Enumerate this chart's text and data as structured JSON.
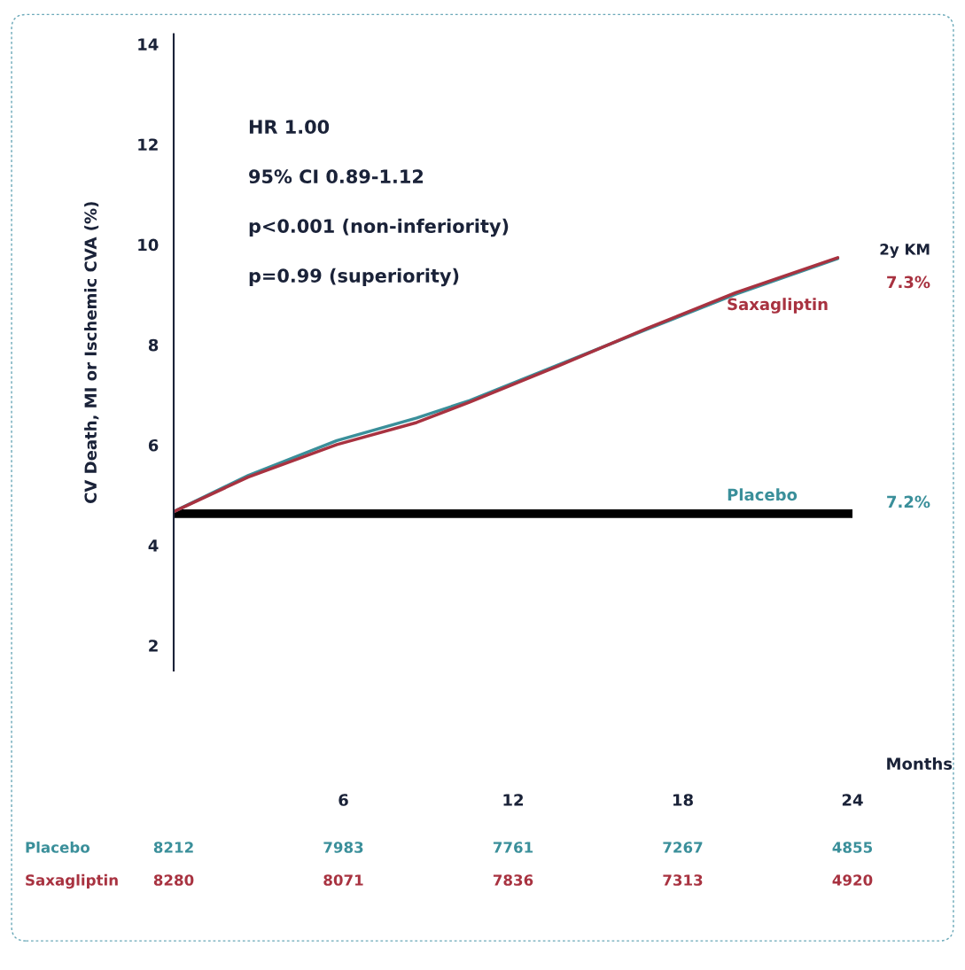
{
  "chart_data": {
    "type": "line",
    "ylabel": "CV Death, MI or Ischemic CVA (%)",
    "xlabel": "Months",
    "x": [
      0,
      2.63,
      5.77,
      8.59,
      10.47,
      13.6,
      16.74,
      19.87,
      23.48
    ],
    "series": [
      {
        "name": "Placebo",
        "color": "#3a8f9a",
        "values": [
          4.67,
          5.39,
          6.09,
          6.54,
          6.89,
          7.6,
          8.31,
          9.01,
          9.72
        ]
      },
      {
        "name": "Saxagliptin",
        "color": "#a83240",
        "values": [
          4.67,
          5.36,
          6.01,
          6.45,
          6.86,
          7.58,
          8.33,
          9.04,
          9.74
        ]
      }
    ],
    "xlim": [
      0,
      24
    ],
    "xticks": [
      6,
      12,
      18,
      24
    ],
    "ylim": [
      1.5,
      14.2
    ],
    "yticks": [
      2,
      4,
      6,
      8,
      10,
      12,
      14
    ],
    "ref_lines": [
      {
        "axis": "y",
        "value": 4.63,
        "color": "#000000"
      }
    ],
    "annotations": [
      "HR 1.00",
      "95% CI 0.89-1.12",
      "p<0.001 (non-inferiority)",
      "p=0.99 (superiority)",
      "2y KM",
      "7.2%",
      "7.3%",
      "Placebo",
      "8212",
      "7983",
      "7761",
      "7267",
      "4855",
      "Saxagliptin",
      "8280",
      "8071",
      "7836",
      "7313",
      "4920"
    ],
    "grid": false,
    "legend": false,
    "marker": "none",
    "line_style": "solid"
  }
}
